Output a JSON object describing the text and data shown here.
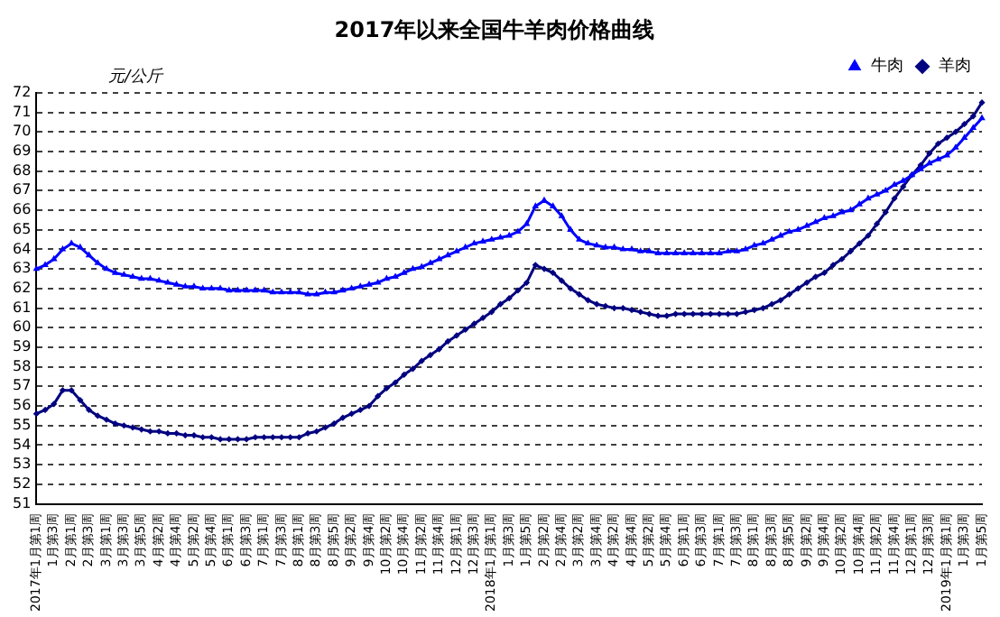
{
  "chart_data": {
    "type": "line",
    "title": "2017年以来全国牛羊肉价格曲线",
    "ylabel": "元/公斤",
    "categories": [
      "2017年1月第1周",
      null,
      "1月第3周",
      null,
      "2月第1周",
      null,
      "2月第3周",
      null,
      "3月第1周",
      null,
      "3月第3周",
      null,
      "3月第5周",
      null,
      "4月第2周",
      null,
      "4月第4周",
      null,
      "5月第2周",
      null,
      "5月第4周",
      null,
      "6月第1周",
      null,
      "6月第3周",
      null,
      "7月第1周",
      null,
      "7月第3周",
      null,
      "8月第1周",
      null,
      "8月第3周",
      null,
      "8月第5周",
      null,
      "9月第2周",
      null,
      "9月第4周",
      null,
      "10月第2周",
      null,
      "10月第4周",
      null,
      "11月第2周",
      null,
      "11月第4周",
      null,
      "12月第1周",
      null,
      "12月第3周",
      null,
      "2018年1月第1周",
      null,
      "1月第3周",
      null,
      "1月第5周",
      null,
      "2月第2周",
      null,
      "2月第4周",
      null,
      "3月第2周",
      null,
      "3月第4周",
      null,
      "4月第2周",
      null,
      "4月第4周",
      null,
      "5月第2周",
      null,
      "5月第4周",
      null,
      "6月第1周",
      null,
      "6月第3周",
      null,
      "7月第1周",
      null,
      "7月第3周",
      null,
      "8月第1周",
      null,
      "8月第3周",
      null,
      "8月第5周",
      null,
      "9月第2周",
      null,
      "9月第4周",
      null,
      "10月第2周",
      null,
      "10月第4周",
      null,
      "11月第2周",
      null,
      "11月第4周",
      null,
      "12月第1周",
      null,
      "12月第3周",
      null,
      "2019年1月第1周",
      null,
      "1月第3周",
      null,
      "1月第5周"
    ],
    "series": [
      {
        "name": "牛肉",
        "color": "#0000ff",
        "marker": "triangle",
        "values": [
          63.0,
          63.2,
          63.5,
          64.0,
          64.3,
          64.1,
          63.7,
          63.3,
          63.0,
          62.8,
          62.7,
          62.6,
          62.5,
          62.5,
          62.4,
          62.3,
          62.2,
          62.1,
          62.1,
          62.0,
          62.0,
          62.0,
          61.9,
          61.9,
          61.9,
          61.9,
          61.9,
          61.8,
          61.8,
          61.8,
          61.8,
          61.7,
          61.7,
          61.8,
          61.8,
          61.9,
          62.0,
          62.1,
          62.2,
          62.3,
          62.5,
          62.6,
          62.8,
          63.0,
          63.1,
          63.3,
          63.5,
          63.7,
          63.9,
          64.1,
          64.3,
          64.4,
          64.5,
          64.6,
          64.7,
          64.9,
          65.3,
          66.2,
          66.5,
          66.2,
          65.7,
          65.0,
          64.5,
          64.3,
          64.2,
          64.1,
          64.1,
          64.0,
          64.0,
          63.9,
          63.9,
          63.8,
          63.8,
          63.8,
          63.8,
          63.8,
          63.8,
          63.8,
          63.8,
          63.9,
          63.9,
          64.0,
          64.2,
          64.3,
          64.5,
          64.7,
          64.9,
          65.0,
          65.2,
          65.4,
          65.6,
          65.7,
          65.9,
          66.0,
          66.3,
          66.6,
          66.8,
          67.0,
          67.3,
          67.5,
          67.8,
          68.1,
          68.4,
          68.6,
          68.8,
          69.2,
          69.7,
          70.2,
          70.7
        ]
      },
      {
        "name": "羊肉",
        "color": "#000080",
        "marker": "diamond",
        "values": [
          55.6,
          55.8,
          56.1,
          56.8,
          56.8,
          56.3,
          55.8,
          55.5,
          55.3,
          55.1,
          55.0,
          54.9,
          54.8,
          54.7,
          54.7,
          54.6,
          54.6,
          54.5,
          54.5,
          54.4,
          54.4,
          54.3,
          54.3,
          54.3,
          54.3,
          54.4,
          54.4,
          54.4,
          54.4,
          54.4,
          54.4,
          54.6,
          54.7,
          54.9,
          55.1,
          55.4,
          55.6,
          55.8,
          56.0,
          56.5,
          56.9,
          57.2,
          57.6,
          57.9,
          58.3,
          58.6,
          58.9,
          59.3,
          59.6,
          59.9,
          60.2,
          60.5,
          60.8,
          61.2,
          61.5,
          61.9,
          62.3,
          63.2,
          63.0,
          62.8,
          62.4,
          62.0,
          61.7,
          61.4,
          61.2,
          61.1,
          61.0,
          61.0,
          60.9,
          60.8,
          60.7,
          60.6,
          60.6,
          60.7,
          60.7,
          60.7,
          60.7,
          60.7,
          60.7,
          60.7,
          60.7,
          60.8,
          60.9,
          61.0,
          61.2,
          61.4,
          61.7,
          62.0,
          62.3,
          62.6,
          62.8,
          63.2,
          63.5,
          63.9,
          64.3,
          64.7,
          65.3,
          65.9,
          66.6,
          67.2,
          67.8,
          68.3,
          68.9,
          69.4,
          69.7,
          70.0,
          70.4,
          70.8,
          71.5
        ]
      }
    ],
    "ylim": [
      51,
      72
    ],
    "yticks": [
      51,
      52,
      53,
      54,
      55,
      56,
      57,
      58,
      59,
      60,
      61,
      62,
      63,
      64,
      65,
      66,
      67,
      68,
      69,
      70,
      71,
      72
    ],
    "grid": "y",
    "legend": "top right",
    "line_style": "solid"
  }
}
